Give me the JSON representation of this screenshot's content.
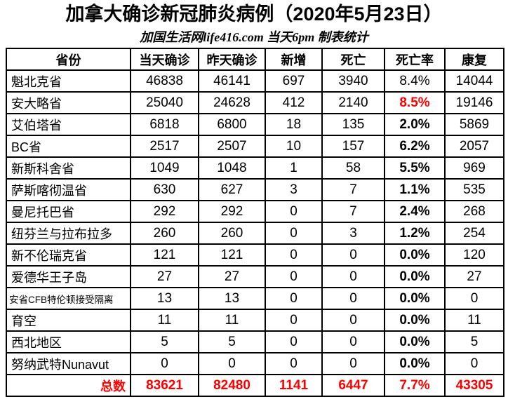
{
  "page": {
    "title": "加拿大确诊新冠肺炎病例（2020年5月23日）",
    "subtitle": "加国生活网life416.com 当天6pm 制表统计"
  },
  "colors": {
    "text": "#000000",
    "highlight_red": "#ff0000",
    "border": "#000000",
    "background": "#ffffff"
  },
  "chart_data": {
    "type": "table",
    "title": "加拿大确诊新冠肺炎病例（2020年5月23日）",
    "subtitle": "加国生活网life416.com 当天6pm 制表统计",
    "columns": [
      "省份",
      "当天确诊",
      "昨天确诊",
      "新增",
      "死亡",
      "死亡率",
      "康复"
    ],
    "rows": [
      {
        "province": "魁北克省",
        "confirmed_today": 46838,
        "confirmed_yesterday": 46141,
        "new_cases": 697,
        "deaths": 3940,
        "death_rate": "8.4%",
        "recovered": 14044,
        "death_rate_bold": false
      },
      {
        "province": "安大略省",
        "confirmed_today": 25040,
        "confirmed_yesterday": 24628,
        "new_cases": 412,
        "deaths": 2140,
        "death_rate": "8.5%",
        "recovered": 19146,
        "death_rate_red": true
      },
      {
        "province": "艾伯塔省",
        "confirmed_today": 6818,
        "confirmed_yesterday": 6800,
        "new_cases": 18,
        "deaths": 135,
        "death_rate": "2.0%",
        "recovered": 5869
      },
      {
        "province": "BC省",
        "confirmed_today": 2517,
        "confirmed_yesterday": 2507,
        "new_cases": 10,
        "deaths": 157,
        "death_rate": "6.2%",
        "recovered": 2057
      },
      {
        "province": "新斯科舍省",
        "confirmed_today": 1049,
        "confirmed_yesterday": 1048,
        "new_cases": 1,
        "deaths": 58,
        "death_rate": "5.5%",
        "recovered": 969
      },
      {
        "province": "萨斯喀彻温省",
        "confirmed_today": 630,
        "confirmed_yesterday": 627,
        "new_cases": 3,
        "deaths": 7,
        "death_rate": "1.1%",
        "recovered": 535
      },
      {
        "province": "曼尼托巴省",
        "confirmed_today": 292,
        "confirmed_yesterday": 292,
        "new_cases": 0,
        "deaths": 7,
        "death_rate": "2.4%",
        "recovered": 268
      },
      {
        "province": "纽芬兰与拉布拉多",
        "confirmed_today": 260,
        "confirmed_yesterday": 260,
        "new_cases": 0,
        "deaths": 3,
        "death_rate": "1.2%",
        "recovered": 254
      },
      {
        "province": "新不伦瑞克省",
        "confirmed_today": 121,
        "confirmed_yesterday": 121,
        "new_cases": 0,
        "deaths": 0,
        "death_rate": "0.0%",
        "recovered": 120
      },
      {
        "province": "爱德华王子岛",
        "confirmed_today": 27,
        "confirmed_yesterday": 27,
        "new_cases": 0,
        "deaths": 0,
        "death_rate": "0.0%",
        "recovered": 27
      },
      {
        "province": "安省CFB特伦顿接受隔离",
        "confirmed_today": 13,
        "confirmed_yesterday": 13,
        "new_cases": 0,
        "deaths": 0,
        "death_rate": "0.0%",
        "recovered": 0,
        "small_label": true
      },
      {
        "province": "育空",
        "confirmed_today": 11,
        "confirmed_yesterday": 11,
        "new_cases": 0,
        "deaths": 0,
        "death_rate": "0.0%",
        "recovered": 11
      },
      {
        "province": "西北地区",
        "confirmed_today": 5,
        "confirmed_yesterday": 5,
        "new_cases": 0,
        "deaths": 0,
        "death_rate": "0.0%",
        "recovered": 5
      },
      {
        "province": "努纳武特Nunavut",
        "confirmed_today": 0,
        "confirmed_yesterday": 0,
        "new_cases": 0,
        "deaths": 0,
        "death_rate": "0.0%",
        "recovered": 0
      }
    ],
    "total": {
      "label": "总数",
      "confirmed_today": 83621,
      "confirmed_yesterday": 82480,
      "new_cases": 1141,
      "deaths": 6447,
      "death_rate": "7.7%",
      "recovered": 43305
    }
  }
}
